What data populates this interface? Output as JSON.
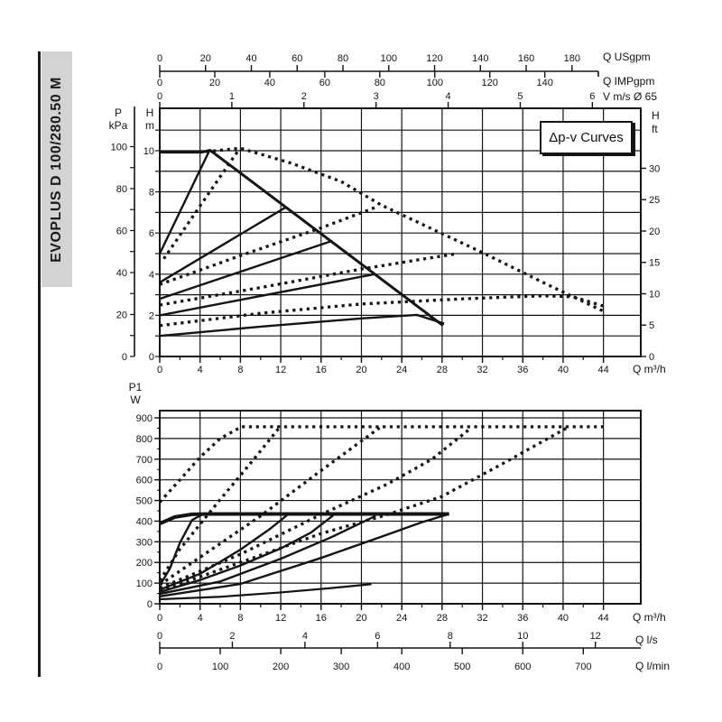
{
  "banner": {
    "text": "EVOPLUS D 100/280.50 M",
    "bg": "#d3d3d3"
  },
  "chart_data": [
    {
      "id": "head_vs_flow",
      "type": "line",
      "annotation": "Δp-v Curves",
      "x_bottom": {
        "unit": "Q m³/h",
        "ticks": [
          0,
          4,
          8,
          12,
          16,
          20,
          24,
          28,
          32,
          36,
          40,
          44
        ],
        "minor_step": 2,
        "max": 47.7
      },
      "x_top_axes": [
        {
          "unit": "Q USgpm",
          "ticks": [
            0,
            20,
            40,
            60,
            80,
            100,
            120,
            140,
            160,
            180
          ],
          "m3h_per_unit": 0.22712
        },
        {
          "unit": "Q IMPgpm",
          "ticks": [
            0,
            20,
            40,
            60,
            80,
            100,
            120,
            140
          ],
          "m3h_per_unit": 0.27276
        },
        {
          "unit": "V m/s Ø 65",
          "ticks": [
            0,
            1,
            2,
            3,
            4,
            5,
            6
          ],
          "m3h_per_unit": 7.15
        }
      ],
      "y_left_primary": {
        "symbol": "H",
        "unit": "m",
        "ticks": [
          0,
          2,
          4,
          6,
          8,
          10
        ],
        "grid_step": 1,
        "max": 12.06
      },
      "y_left_secondary": {
        "symbol": "P",
        "unit": "kPa",
        "ticks": [
          0,
          20,
          40,
          60,
          80,
          100
        ],
        "minor_step": 10,
        "m_per_unit": 0.10197
      },
      "y_right": {
        "symbol": "H",
        "unit": "ft",
        "ticks": [
          0,
          5,
          10,
          15,
          20,
          25,
          30
        ],
        "m_per_unit": 0.3048
      },
      "series": [
        {
          "name": "max-speed-single",
          "style": "solid",
          "width": 3,
          "points": [
            [
              0,
              9.93
            ],
            [
              4.2,
              9.93
            ],
            [
              5.0,
              10.02
            ],
            [
              28.1,
              1.5
            ]
          ]
        },
        {
          "name": "dpv-10-single",
          "style": "solid",
          "width": 2.4,
          "points": [
            [
              0,
              5.0
            ],
            [
              4.9,
              9.98
            ]
          ]
        },
        {
          "name": "dpv-7-single",
          "style": "solid",
          "width": 2.4,
          "points": [
            [
              0,
              3.6
            ],
            [
              12.5,
              7.25
            ]
          ]
        },
        {
          "name": "dpv-5.5-single",
          "style": "solid",
          "width": 2.4,
          "points": [
            [
              0,
              2.8
            ],
            [
              17.1,
              5.62
            ]
          ]
        },
        {
          "name": "dpv-4-single",
          "style": "solid",
          "width": 2.4,
          "points": [
            [
              0,
              2.0
            ],
            [
              21.3,
              4.0
            ]
          ]
        },
        {
          "name": "dpv-2-single",
          "style": "solid",
          "width": 2.4,
          "points": [
            [
              0,
              1.0
            ],
            [
              10,
              1.45
            ],
            [
              20,
              1.85
            ],
            [
              25.5,
              2.02
            ],
            [
              28.2,
              1.6
            ]
          ]
        },
        {
          "name": "max-speed-parallel",
          "style": "dotted",
          "width": 3.3,
          "points": [
            [
              4.6,
              9.95
            ],
            [
              8,
              10.12
            ],
            [
              13,
              9.4
            ],
            [
              18,
              8.5
            ],
            [
              22,
              7.35
            ],
            [
              27,
              6.2
            ],
            [
              32,
              5.05
            ],
            [
              38,
              3.6
            ],
            [
              44,
              2.2
            ]
          ]
        },
        {
          "name": "dpv-10-parallel",
          "style": "dotted",
          "width": 3.3,
          "points": [
            [
              0.4,
              4.75
            ],
            [
              7.7,
              9.95
            ]
          ]
        },
        {
          "name": "dpv-7-parallel",
          "style": "dotted",
          "width": 3.3,
          "points": [
            [
              0,
              3.5
            ],
            [
              8,
              4.9
            ],
            [
              16,
              6.25
            ],
            [
              21.7,
              7.3
            ]
          ]
        },
        {
          "name": "dpv-5-parallel",
          "style": "dotted",
          "width": 3.3,
          "points": [
            [
              0,
              2.5
            ],
            [
              10,
              3.35
            ],
            [
              20,
              4.25
            ],
            [
              29.5,
              5.0
            ]
          ]
        },
        {
          "name": "dpv-3-parallel",
          "style": "dotted",
          "width": 3.3,
          "points": [
            [
              0,
              1.5
            ],
            [
              10,
              2.1
            ],
            [
              20,
              2.55
            ],
            [
              30,
              2.8
            ],
            [
              38,
              2.95
            ],
            [
              41,
              2.9
            ],
            [
              44,
              2.45
            ]
          ]
        }
      ]
    },
    {
      "id": "power_vs_flow",
      "type": "line",
      "y_left": {
        "symbol": "P1",
        "unit": "W",
        "ticks": [
          0,
          100,
          200,
          300,
          400,
          500,
          600,
          700,
          800,
          900
        ],
        "minor_step": 50,
        "max": 935
      },
      "x_bottom": {
        "unit": "Q m³/h",
        "ticks": [
          0,
          4,
          8,
          12,
          16,
          20,
          24,
          28,
          32,
          36,
          40,
          44
        ],
        "minor_step": 2,
        "max": 47.7
      },
      "x_below_axes": [
        {
          "unit": "Q l/s",
          "ticks": [
            0,
            2,
            4,
            6,
            8,
            10,
            12
          ],
          "m3h_per_unit": 3.6
        },
        {
          "unit": "Q l/min",
          "ticks": [
            0,
            100,
            200,
            300,
            400,
            500,
            600,
            700
          ],
          "m3h_per_unit": 0.06
        }
      ],
      "series": [
        {
          "name": "power-max-single",
          "style": "solid",
          "width": 4,
          "points": [
            [
              0,
              388
            ],
            [
              1.5,
              420
            ],
            [
              3.2,
              433
            ],
            [
              5,
              435
            ],
            [
              28.7,
              435
            ]
          ]
        },
        {
          "name": "power-10-single",
          "style": "solid",
          "width": 2.4,
          "points": [
            [
              0,
              88
            ],
            [
              1,
              170
            ],
            [
              2,
              295
            ],
            [
              3.2,
              405
            ],
            [
              4.2,
              432
            ]
          ]
        },
        {
          "name": "power-7-single",
          "style": "solid",
          "width": 2.4,
          "points": [
            [
              0,
              68
            ],
            [
              4,
              145
            ],
            [
              8,
              262
            ],
            [
              11,
              365
            ],
            [
              12.7,
              432
            ]
          ]
        },
        {
          "name": "power-5.5-single",
          "style": "solid",
          "width": 2.4,
          "points": [
            [
              0,
              57
            ],
            [
              4,
              115
            ],
            [
              8,
              185
            ],
            [
              12,
              268
            ],
            [
              15,
              345
            ],
            [
              17.2,
              428
            ]
          ]
        },
        {
          "name": "power-4-single",
          "style": "solid",
          "width": 2.4,
          "points": [
            [
              0,
              48
            ],
            [
              6,
              108
            ],
            [
              12,
              218
            ],
            [
              17,
              322
            ],
            [
              21.4,
              425
            ]
          ]
        },
        {
          "name": "power-2-single",
          "style": "solid",
          "width": 2.4,
          "points": [
            [
              0,
              36
            ],
            [
              8,
              96
            ],
            [
              16,
              222
            ],
            [
              22,
              325
            ],
            [
              26,
              395
            ],
            [
              28.6,
              433
            ]
          ]
        },
        {
          "name": "power-min-single",
          "style": "solid",
          "width": 2.2,
          "points": [
            [
              0,
              22
            ],
            [
              6,
              34
            ],
            [
              12,
              55
            ],
            [
              17,
              76
            ],
            [
              21,
              95
            ]
          ]
        },
        {
          "name": "power-max-parallel",
          "style": "dotted",
          "width": 3.3,
          "points": [
            [
              0,
              492
            ],
            [
              2,
              600
            ],
            [
              4,
              710
            ],
            [
              6,
              800
            ],
            [
              8.1,
              857
            ],
            [
              44,
              857
            ]
          ]
        },
        {
          "name": "power-10-parallel",
          "style": "dotted",
          "width": 3.3,
          "points": [
            [
              0,
              112
            ],
            [
              2,
              265
            ],
            [
              4,
              385
            ],
            [
              6,
              505
            ],
            [
              9,
              680
            ],
            [
              11.9,
              855
            ]
          ]
        },
        {
          "name": "power-7-parallel",
          "style": "dotted",
          "width": 3.3,
          "points": [
            [
              0,
              92
            ],
            [
              4,
              225
            ],
            [
              10,
              425
            ],
            [
              16,
              645
            ],
            [
              21.8,
              852
            ]
          ]
        },
        {
          "name": "power-5.5-parallel",
          "style": "dotted",
          "width": 3.3,
          "points": [
            [
              0,
              76
            ],
            [
              8,
              240
            ],
            [
              16,
              432
            ],
            [
              22.6,
              580
            ],
            [
              27,
              700
            ],
            [
              30.9,
              852
            ]
          ]
        },
        {
          "name": "power-4-parallel",
          "style": "dotted",
          "width": 3.3,
          "points": [
            [
              0,
              62
            ],
            [
              8,
              200
            ],
            [
              16,
              340
            ],
            [
              22.6,
              432
            ],
            [
              28,
              520
            ],
            [
              34,
              678
            ],
            [
              40.4,
              852
            ]
          ]
        }
      ]
    }
  ]
}
